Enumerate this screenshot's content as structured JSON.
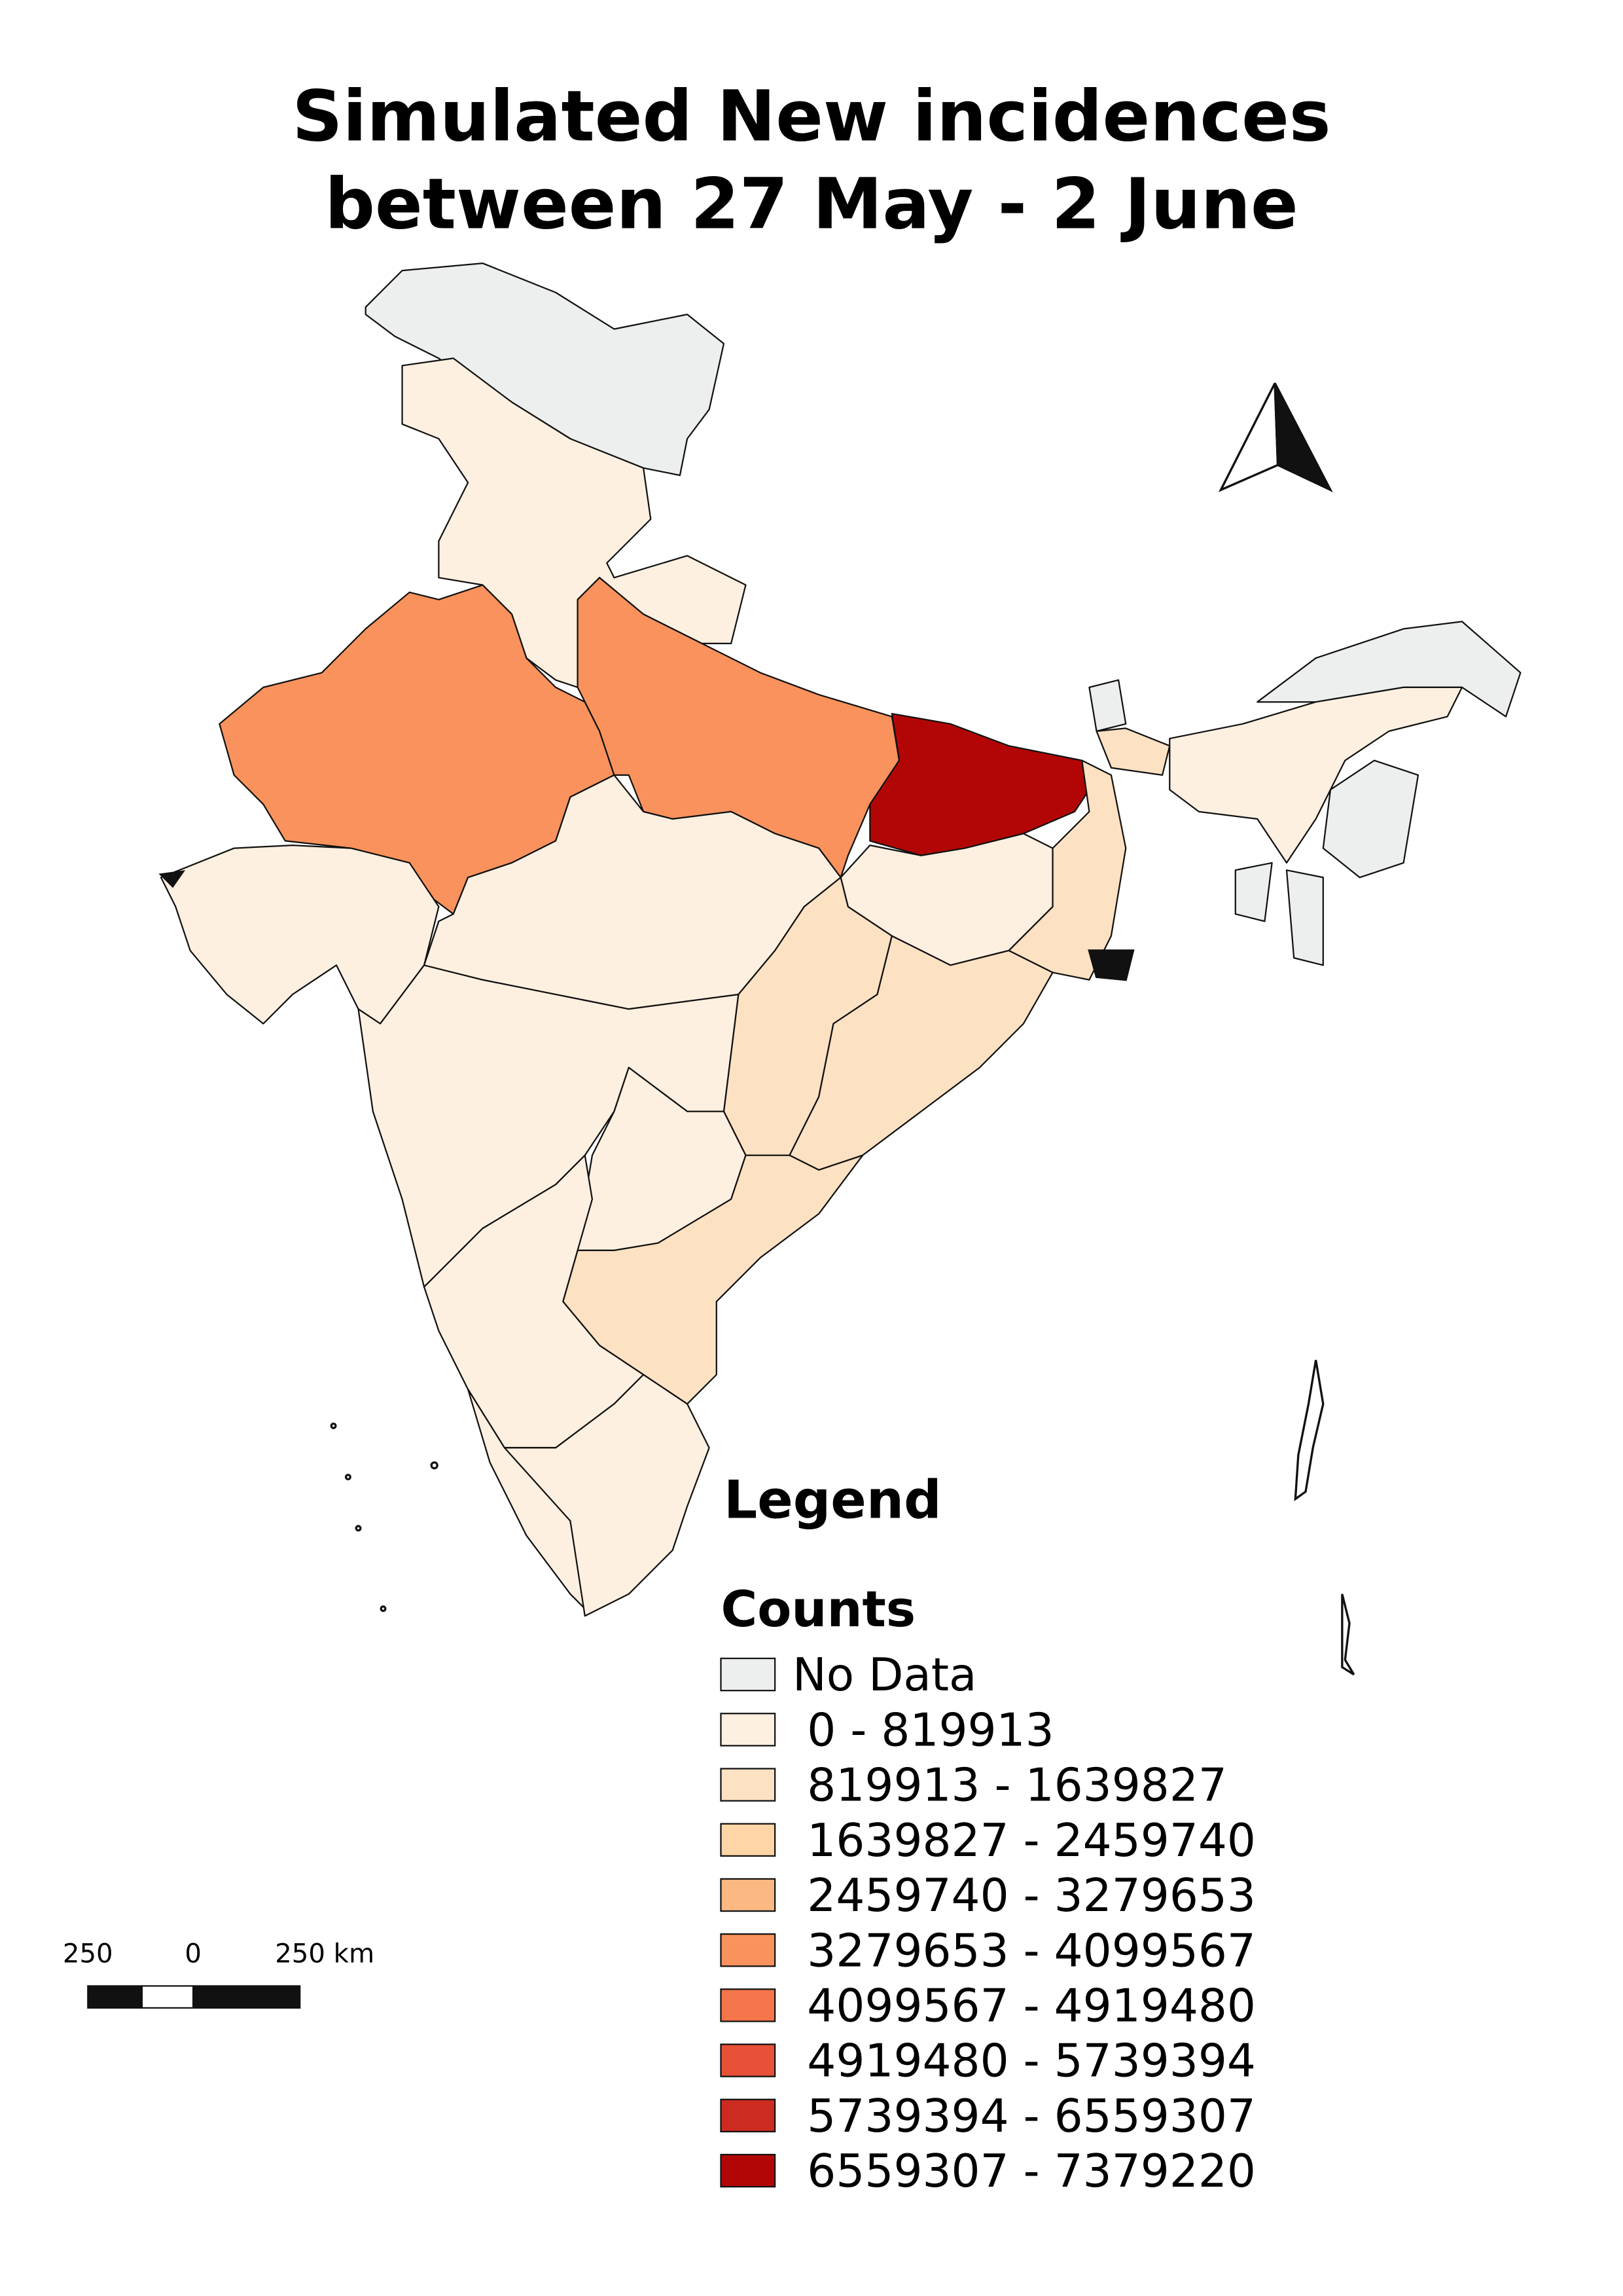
{
  "title": [
    "Simulated New incidences",
    "between 27 May - 2 June"
  ],
  "legend": {
    "title": "Legend",
    "subtitle": "Counts",
    "entries": [
      {
        "label": "No Data",
        "color": "#edeeee"
      },
      {
        "label": "0 - 819913",
        "color": "#fef0e0"
      },
      {
        "label": "819913 - 1639827",
        "color": "#fde1c3"
      },
      {
        "label": "1639827 - 2459740",
        "color": "#fdd5a6"
      },
      {
        "label": "2459740 - 3279653",
        "color": "#fcb882"
      },
      {
        "label": "3279653 - 4099567",
        "color": "#f9925c"
      },
      {
        "label": "4099567 - 4919480",
        "color": "#f47549"
      },
      {
        "label": "4919480 - 5739394",
        "color": "#e65138"
      },
      {
        "label": "5739394 - 6559307",
        "color": "#cc2b1f"
      },
      {
        "label": "6559307 - 7379220",
        "color": "#b20606"
      }
    ]
  },
  "scale_bar": {
    "labels": [
      "250",
      "0",
      "250 km"
    ]
  }
}
